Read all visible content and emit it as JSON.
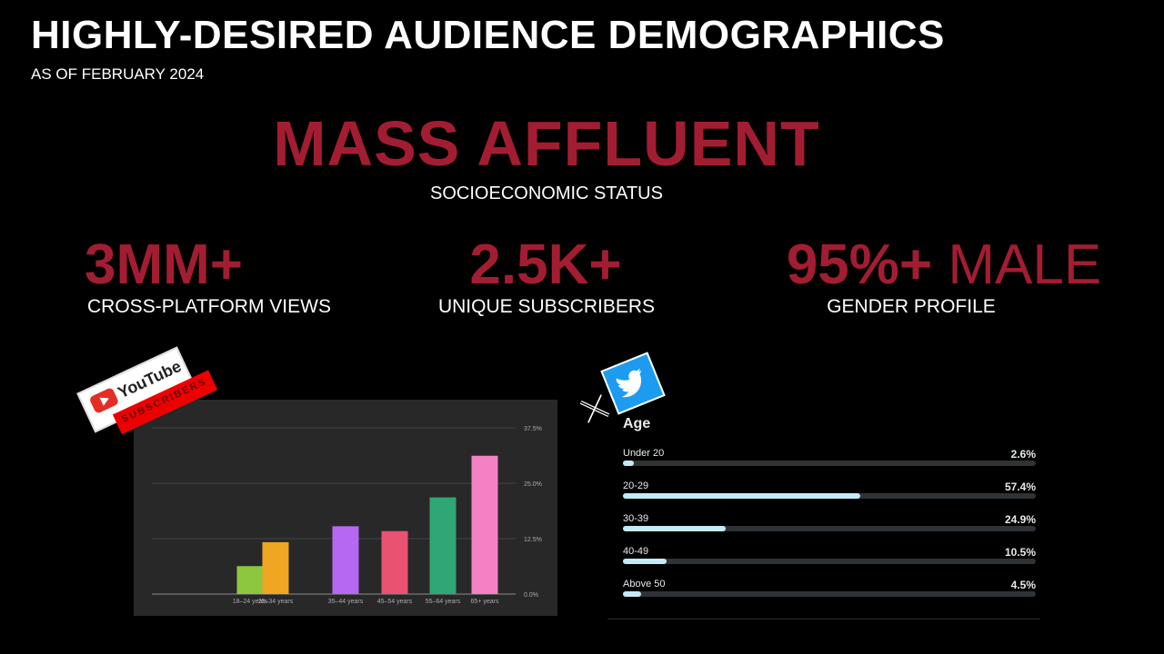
{
  "header": {
    "title": "HIGHLY-DESIRED AUDIENCE DEMOGRAPHICS",
    "subtitle": "AS OF FEBRUARY 2024"
  },
  "headline": {
    "value": "MASS AFFLUENT",
    "caption": "SOCIOECONOMIC STATUS"
  },
  "stats": [
    {
      "value": "3MM+",
      "caption": "CROSS-PLATFORM VIEWS"
    },
    {
      "value": "2.5K+",
      "caption": "UNIQUE SUBSCRIBERS"
    },
    {
      "value_bold": "95%+",
      "value_thin": " MALE",
      "caption": "GENDER PROFILE"
    }
  ],
  "youtube_badge": {
    "brand": "YouTube",
    "tag": "SUBSCRIBERS",
    "brand_color": "#e52d27"
  },
  "twitter_badge": {
    "icons": [
      "x-logo-icon",
      "twitter-bird-icon"
    ],
    "brand_color": "#1d9bf0"
  },
  "chart_data": [
    {
      "type": "bar",
      "categories": [
        "18–24 years",
        "25–34 years",
        "35–44 years",
        "45–54 years",
        "55–64 years",
        "65+ years"
      ],
      "values": [
        6.3,
        11.7,
        15.3,
        14.2,
        21.8,
        31.2
      ],
      "colors": [
        "#8dc63f",
        "#f0a623",
        "#b768f2",
        "#e95271",
        "#2fa774",
        "#f381c4"
      ],
      "ytick_labels": [
        "0.0%",
        "12.5%",
        "25.0%",
        "37.5%"
      ],
      "yticks": [
        0,
        12.5,
        25,
        37.5
      ],
      "ylim": [
        0,
        40
      ],
      "grid": true
    },
    {
      "type": "bar",
      "title": "Age",
      "categories": [
        "Under 20",
        "20-29",
        "30-39",
        "40-49",
        "Above 50"
      ],
      "values": [
        2.6,
        57.4,
        24.9,
        10.5,
        4.5
      ],
      "value_labels": [
        "2.6%",
        "57.4%",
        "24.9%",
        "10.5%",
        "4.5%"
      ],
      "xlim": [
        0,
        100
      ],
      "orientation": "horizontal"
    }
  ]
}
